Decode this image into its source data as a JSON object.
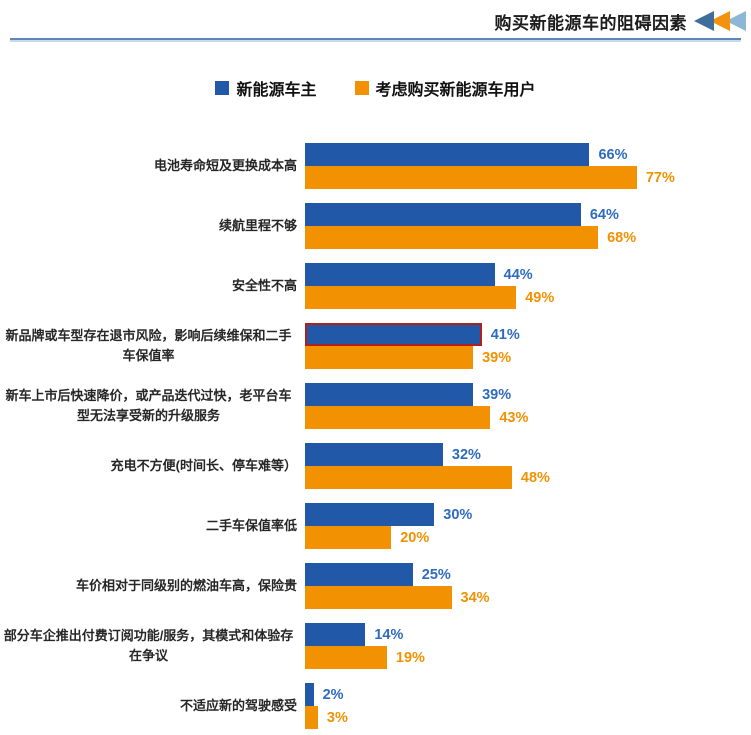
{
  "header": {
    "title": "购买新能源车的阻碍因素",
    "accent_arrows": {
      "colors": [
        "#3F6E9D",
        "#F2920F",
        "#8CB8D6"
      ]
    },
    "divider_colors": {
      "top": "#5E86B8",
      "bottom": "#C9D9EC"
    }
  },
  "chart_data": {
    "type": "bar",
    "orientation": "horizontal",
    "title": "购买新能源车的阻碍因素",
    "legend_position": "top",
    "value_suffix": "%",
    "xlim": [
      0,
      100
    ],
    "grid": false,
    "categories": [
      "电池寿命短及更换成本高",
      "续航里程不够",
      "安全性不高",
      "新品牌或车型存在退市风险，影响后续维保和二手车保值率",
      "新车上市后快速降价，或产品迭代过快，老平台车型无法享受新的升级服务",
      "充电不方便(时间长、停车难等）",
      "二手车保值率低",
      "车价相对于同级别的燃油车高，保险贵",
      "部分车企推出付费订阅功能/服务，其模式和体验存在争议",
      "不适应新的驾驶感受"
    ],
    "series": [
      {
        "key": "nev-owners",
        "name": "新能源车主",
        "color": "#2158A8",
        "label_color": "#2E6BBE",
        "values": [
          66,
          64,
          44,
          41,
          39,
          32,
          30,
          25,
          14,
          2
        ]
      },
      {
        "key": "considering-buyers",
        "name": "考虑购买新能源车用户",
        "color": "#F29102",
        "label_color": "#F29102",
        "values": [
          77,
          68,
          49,
          39,
          43,
          48,
          20,
          34,
          19,
          3
        ]
      }
    ],
    "highlight": {
      "series_index": 0,
      "category_index": 3,
      "border_color": "#B1201C"
    }
  }
}
